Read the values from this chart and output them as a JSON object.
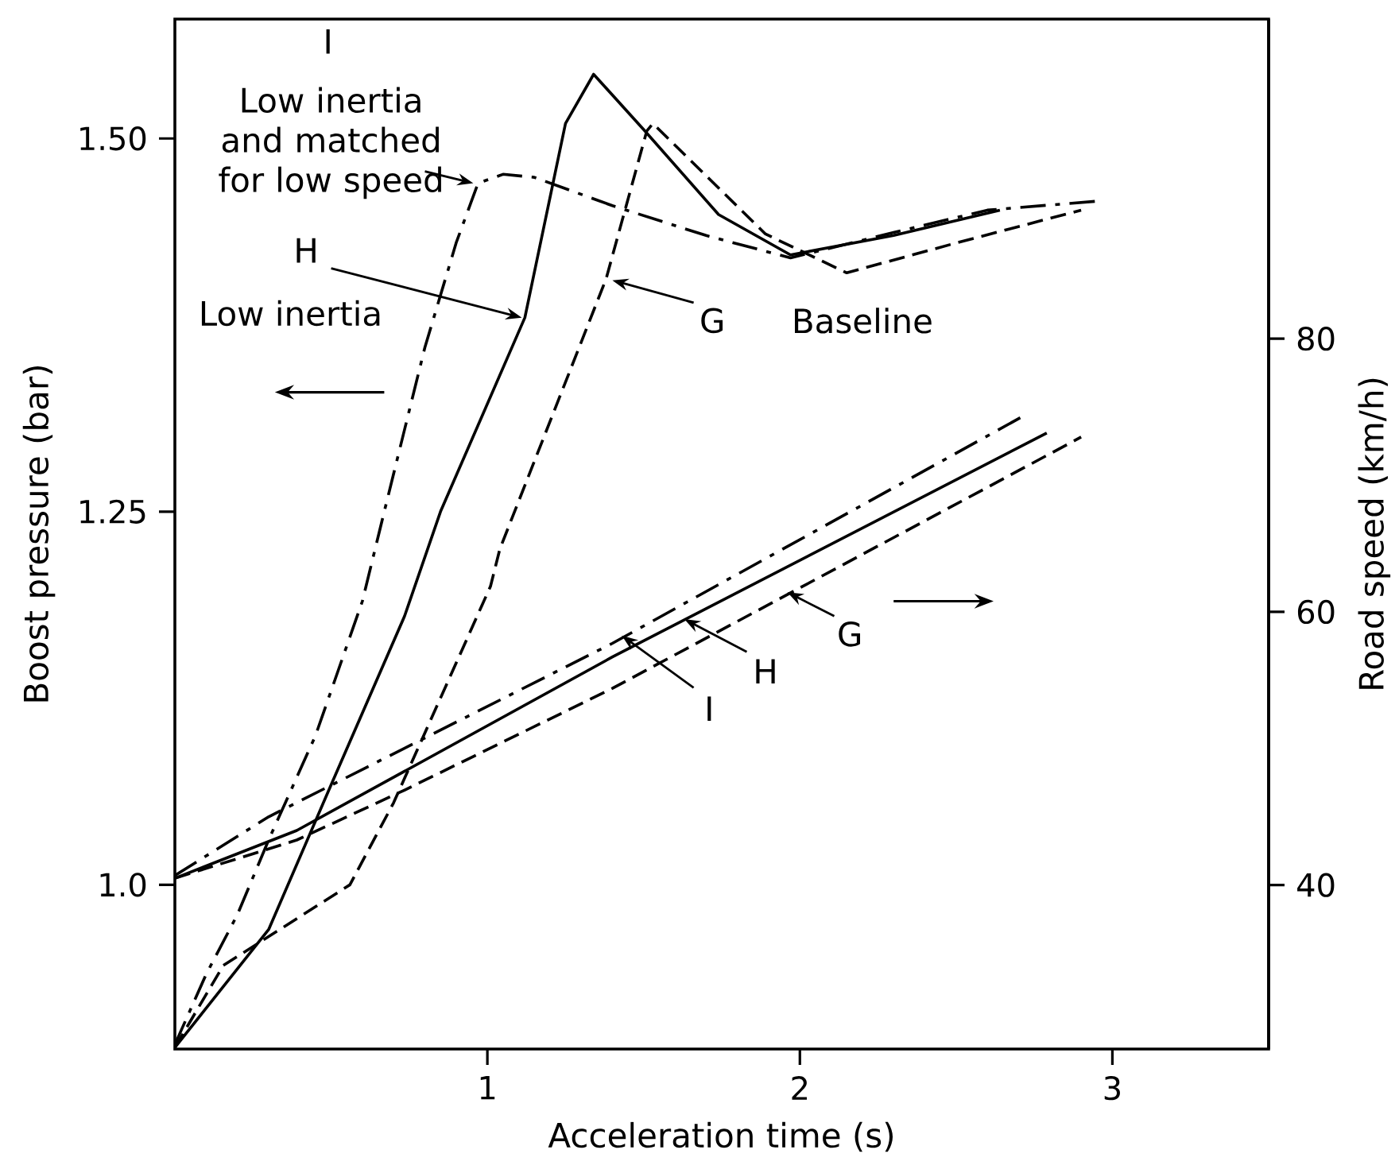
{
  "chart_data": {
    "type": "line",
    "xlabel": "Acceleration time (s)",
    "ylabel": "Boost pressure (bar)",
    "y2label": "Road speed (km/h)",
    "xlim": [
      0,
      3.5
    ],
    "xticks": [
      1,
      2,
      3
    ],
    "ylim": [
      0.89,
      1.58
    ],
    "yticks": [
      {
        "value": 1.0,
        "label": "1.0"
      },
      1.25,
      {
        "value": 1.5,
        "label": "1.50"
      }
    ],
    "y2lim": [
      28,
      103.4
    ],
    "y2ticks": [
      40,
      60,
      80
    ],
    "series": [
      {
        "color": "#000000",
        "line_style": "dashdot",
        "x": [
          0,
          0.1,
          0.2,
          0.3,
          0.45,
          0.6,
          0.67,
          0.8,
          0.9,
          0.97,
          1.05,
          1.15,
          1.4,
          1.7,
          1.97,
          2.3,
          2.6,
          2.95
        ],
        "values": [
          0.893,
          0.94,
          0.98,
          1.03,
          1.1,
          1.19,
          1.25,
          1.36,
          1.43,
          1.47,
          1.476,
          1.474,
          1.455,
          1.435,
          1.42,
          1.437,
          1.452,
          1.458
        ]
      },
      {
        "color": "#000000",
        "line_style": "solid",
        "x": [
          0,
          0.3,
          0.5,
          0.735,
          0.85,
          1.12,
          1.25,
          1.34,
          1.5,
          1.74,
          1.97,
          2.3,
          2.64
        ],
        "values": [
          0.891,
          0.97,
          1.067,
          1.18,
          1.25,
          1.38,
          1.51,
          1.543,
          1.506,
          1.449,
          1.422,
          1.435,
          1.452
        ]
      },
      {
        "color": "#000000",
        "line_style": "dashed",
        "x": [
          0,
          0.155,
          0.56,
          0.7,
          1.01,
          1.04,
          1.38,
          1.51,
          1.53,
          1.89,
          2.15,
          2.5,
          2.9
        ],
        "values": [
          0.891,
          0.946,
          1.0,
          1.055,
          1.2,
          1.225,
          1.406,
          1.505,
          1.51,
          1.436,
          1.41,
          1.43,
          1.452
        ]
      },
      {
        "color": "#000000",
        "line_style": "dashdot",
        "axis": "y2",
        "x": [
          0,
          0.3,
          1.4,
          2.72
        ],
        "values": [
          40.7,
          45,
          57.7,
          74.4
        ]
      },
      {
        "color": "#000000",
        "line_style": "solid",
        "axis": "y2",
        "x": [
          0,
          0.39,
          1.4,
          2.79
        ],
        "values": [
          40.5,
          44,
          56.7,
          73.1
        ]
      },
      {
        "color": "#000000",
        "line_style": "dashed",
        "axis": "y2",
        "x": [
          0,
          0.39,
          0.73,
          1.4,
          2.9
        ],
        "values": [
          40.5,
          43.3,
          46.9,
          54.4,
          72.8
        ]
      }
    ],
    "annotations": [
      "I",
      {
        "text": "Low inertia and matched for low speed",
        "x": 0.955,
        "y": 1.47
      },
      {
        "text": "H",
        "x": 1.11,
        "y": 1.38
      },
      "Low inertia",
      {
        "text": "G",
        "x": 1.4,
        "y": 1.405
      },
      "Baseline",
      {
        "text": "I",
        "x": 1.43,
        "y": 1.167
      },
      {
        "text": "H",
        "x": 1.63,
        "y": 1.178
      },
      {
        "text": "G",
        "x": 1.96,
        "y": 1.196
      }
    ]
  }
}
